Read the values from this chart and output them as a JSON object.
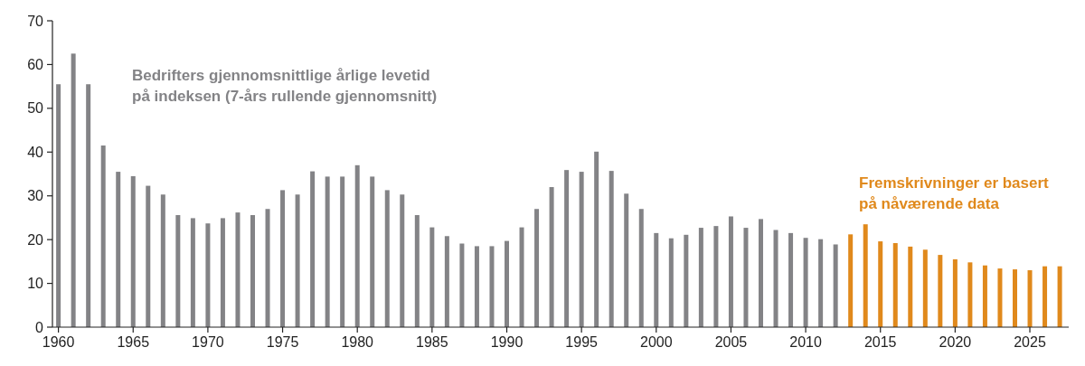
{
  "chart_data": {
    "type": "bar",
    "xlim": [
      1959.6,
      2027.6
    ],
    "xticks": [
      1960,
      1965,
      1970,
      1975,
      1980,
      1985,
      1990,
      1995,
      2000,
      2005,
      2010,
      2015,
      2020,
      2025
    ],
    "ylim": [
      0,
      70
    ],
    "yticks": [
      0,
      10,
      20,
      30,
      40,
      50,
      60,
      70
    ],
    "grid": false,
    "series": [
      {
        "name": "Bedrifters gjennomsnittlige årlige levetid på indeksen (7-års rullende gjennomsnitt)",
        "color": "#838386",
        "x": [
          1960,
          1961,
          1962,
          1963,
          1964,
          1965,
          1966,
          1967,
          1968,
          1969,
          1970,
          1971,
          1972,
          1973,
          1974,
          1975,
          1976,
          1977,
          1978,
          1979,
          1980,
          1981,
          1982,
          1983,
          1984,
          1985,
          1986,
          1987,
          1988,
          1989,
          1990,
          1991,
          1992,
          1993,
          1994,
          1995,
          1996,
          1997,
          1998,
          1999,
          2000,
          2001,
          2002,
          2003,
          2004,
          2005,
          2006,
          2007,
          2008,
          2009,
          2010,
          2011,
          2012
        ],
        "values": [
          55.5,
          62.5,
          55.5,
          41.5,
          35.5,
          34.5,
          32.3,
          30.3,
          25.6,
          24.9,
          23.7,
          24.9,
          26.2,
          25.6,
          27,
          31.3,
          30.3,
          35.6,
          34.4,
          34.4,
          37,
          34.4,
          31.3,
          30.3,
          25.6,
          22.8,
          20.8,
          19.1,
          18.5,
          18.5,
          19.7,
          22.8,
          27,
          32,
          35.9,
          35.5,
          40.1,
          35.7,
          30.5,
          27,
          21.5,
          20.3,
          21.1,
          22.7,
          23.1,
          25.3,
          22.7,
          24.7,
          22.2,
          21.5,
          20.4,
          20.1,
          18.9
        ]
      },
      {
        "name": "Fremskrivninger er basert på nåværende data",
        "color": "#e0891c",
        "x": [
          2013,
          2014,
          2015,
          2016,
          2017,
          2018,
          2019,
          2020,
          2021,
          2022,
          2023,
          2024,
          2025,
          2026,
          2027
        ],
        "values": [
          21.2,
          23.5,
          19.6,
          19.2,
          18.4,
          17.7,
          16.5,
          15.5,
          14.8,
          14.1,
          13.4,
          13.2,
          13,
          13.9,
          13.9
        ]
      }
    ]
  }
}
